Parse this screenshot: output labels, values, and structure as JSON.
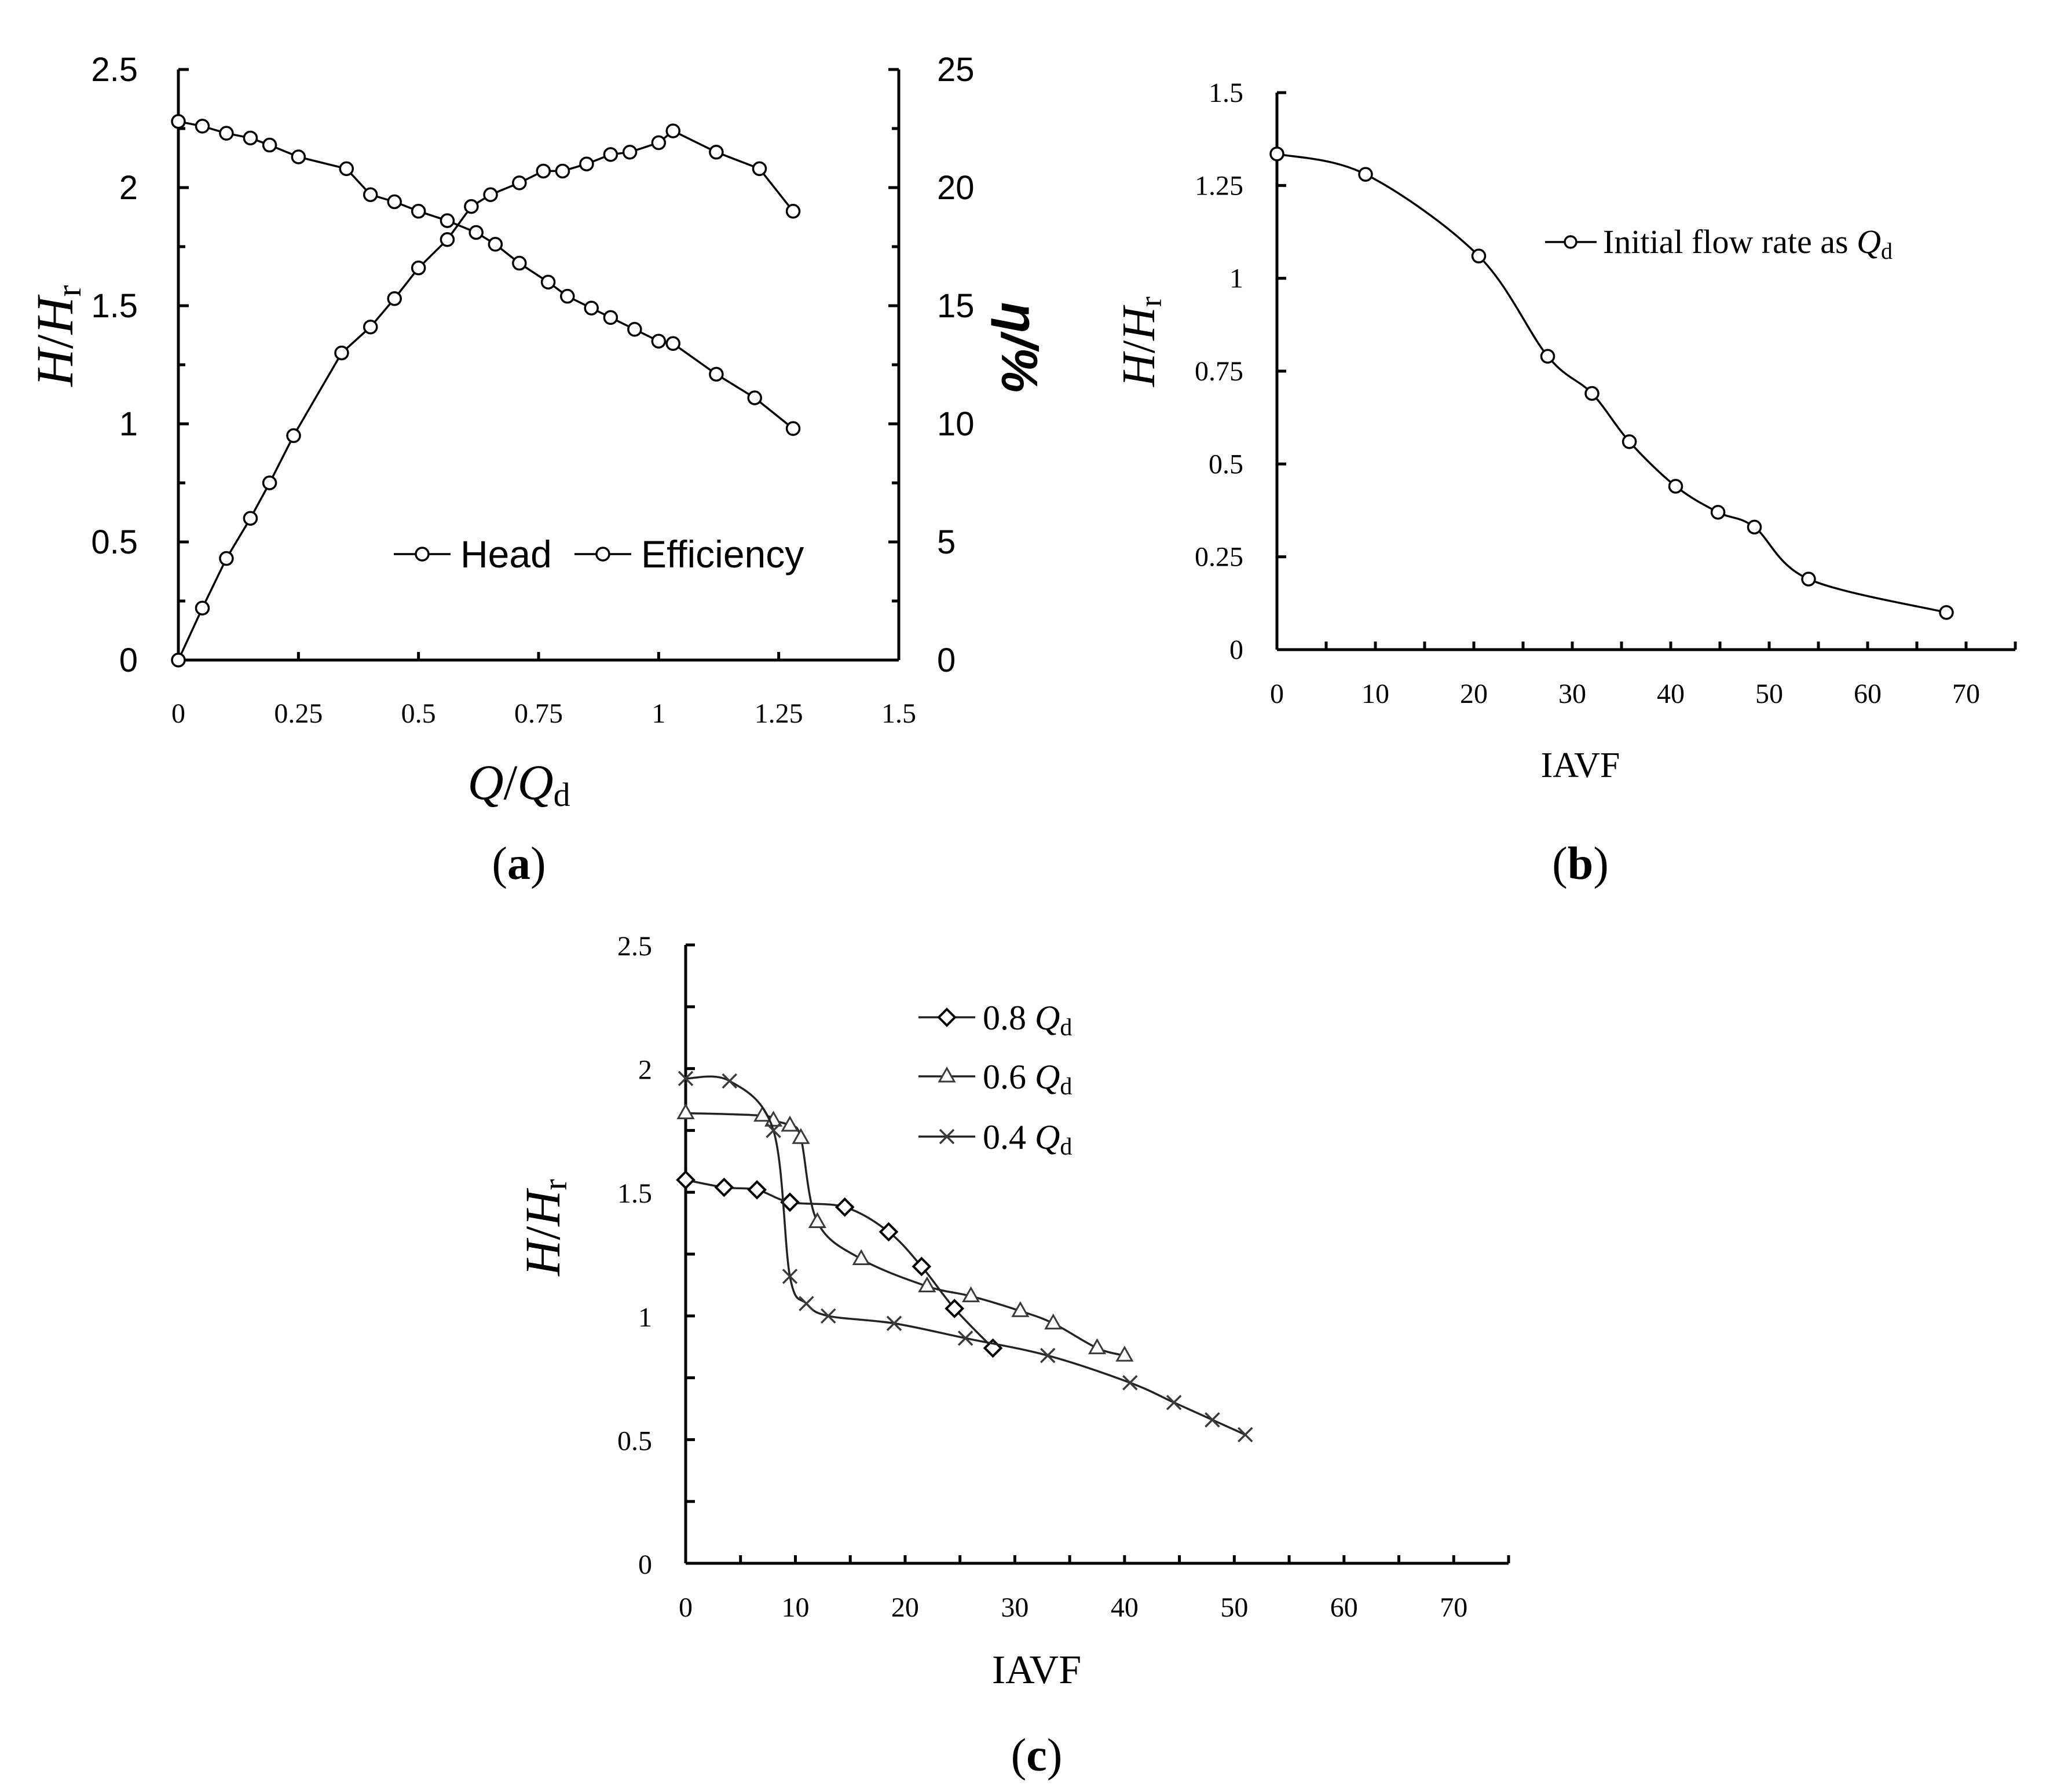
{
  "chart_data": [
    {
      "panel": "a",
      "type": "line",
      "caption_letter": "a",
      "xlabel": {
        "main": "Q",
        "sep": "/",
        "main2": "Q",
        "sub": "d"
      },
      "ylabel": {
        "main": "H",
        "sep": "/",
        "main2": "H",
        "sub": "r"
      },
      "y2label": "η/%",
      "xlim": [
        0,
        1.5
      ],
      "ylim": [
        0,
        2.5
      ],
      "y2lim": [
        0,
        25
      ],
      "xticks": [
        "0",
        "0.25",
        "0.5",
        "0.75",
        "1",
        "1.25",
        "1.5"
      ],
      "yticks": [
        "0",
        "0.5",
        "1",
        "1.5",
        "2",
        "2.5"
      ],
      "y2ticks": [
        "0",
        "5",
        "10",
        "15",
        "20",
        "25"
      ],
      "legend": [
        "Head",
        "Efficiency"
      ],
      "series": [
        {
          "name": "Head",
          "axis": "left",
          "x": [
            0,
            0.05,
            0.1,
            0.15,
            0.19,
            0.25,
            0.35,
            0.4,
            0.45,
            0.5,
            0.56,
            0.62,
            0.66,
            0.71,
            0.77,
            0.81,
            0.86,
            0.9,
            0.95,
            1.0,
            1.03,
            1.12,
            1.2,
            1.28
          ],
          "values": [
            2.28,
            2.26,
            2.23,
            2.21,
            2.18,
            2.13,
            2.08,
            1.97,
            1.94,
            1.9,
            1.86,
            1.81,
            1.76,
            1.68,
            1.6,
            1.54,
            1.49,
            1.45,
            1.4,
            1.35,
            1.34,
            1.21,
            1.11,
            0.98
          ]
        },
        {
          "name": "Efficiency",
          "axis": "right",
          "x": [
            0,
            0.05,
            0.1,
            0.15,
            0.19,
            0.24,
            0.34,
            0.4,
            0.45,
            0.5,
            0.56,
            0.61,
            0.65,
            0.71,
            0.76,
            0.8,
            0.85,
            0.9,
            0.94,
            1.0,
            1.03,
            1.12,
            1.21,
            1.28
          ],
          "values": [
            0,
            2.2,
            4.3,
            6.0,
            7.5,
            9.5,
            13.0,
            14.1,
            15.3,
            16.6,
            17.8,
            19.2,
            19.7,
            20.2,
            20.7,
            20.7,
            21.0,
            21.4,
            21.5,
            21.9,
            22.4,
            21.5,
            20.8,
            19.0
          ]
        }
      ]
    },
    {
      "panel": "b",
      "type": "line",
      "caption_letter": "b",
      "xlabel": "IAVF",
      "ylabel": {
        "main": "H",
        "sep": "/",
        "main2": "H",
        "sub": "r"
      },
      "xlim": [
        0,
        75
      ],
      "ylim": [
        0,
        1.5
      ],
      "xticks": [
        "0",
        "10",
        "20",
        "30",
        "40",
        "50",
        "60",
        "70"
      ],
      "yticks": [
        "0",
        "0.25",
        "0.5",
        "0.75",
        "1",
        "1.25",
        "1.5"
      ],
      "legend": [
        {
          "text": "Initial flow rate as ",
          "q": "Q",
          "sub": "d"
        }
      ],
      "series": [
        {
          "name": "Initial flow rate as Qd",
          "x": [
            0,
            9,
            20.5,
            27.5,
            32,
            35.8,
            40.5,
            44.8,
            48.5,
            54,
            68
          ],
          "values": [
            1.335,
            1.28,
            1.06,
            0.79,
            0.69,
            0.56,
            0.44,
            0.37,
            0.33,
            0.19,
            0.1
          ]
        }
      ]
    },
    {
      "panel": "c",
      "type": "line",
      "caption_letter": "c",
      "xlabel": "IAVF",
      "ylabel": {
        "main": "H",
        "sep": "/",
        "main2": "H",
        "sub": "r"
      },
      "xlim": [
        0,
        75
      ],
      "ylim": [
        0,
        2.5
      ],
      "xticks": [
        "0",
        "10",
        "20",
        "30",
        "40",
        "50",
        "60",
        "70"
      ],
      "yticks": [
        "0",
        "0.5",
        "1",
        "1.5",
        "2",
        "2.5"
      ],
      "legend": [
        {
          "text": "0.8 ",
          "q": "Q",
          "sub": "d",
          "marker": "diamond"
        },
        {
          "text": "0.6 ",
          "q": "Q",
          "sub": "d",
          "marker": "triangle"
        },
        {
          "text": "0.4 ",
          "q": "Q",
          "sub": "d",
          "marker": "x"
        }
      ],
      "series": [
        {
          "name": "0.8 Qd",
          "marker": "diamond",
          "x": [
            0,
            3.5,
            6.5,
            9.5,
            14.5,
            18.5,
            21.5,
            24.5,
            28
          ],
          "values": [
            1.55,
            1.52,
            1.51,
            1.46,
            1.44,
            1.34,
            1.2,
            1.03,
            0.87
          ]
        },
        {
          "name": "0.6 Qd",
          "marker": "triangle",
          "x": [
            0,
            7,
            8,
            9.5,
            10.5,
            12,
            16,
            22,
            26,
            30.5,
            33.5,
            37.5,
            40
          ],
          "values": [
            1.82,
            1.81,
            1.79,
            1.77,
            1.72,
            1.38,
            1.23,
            1.12,
            1.08,
            1.02,
            0.97,
            0.87,
            0.84
          ]
        },
        {
          "name": "0.4 Qd",
          "marker": "x",
          "x": [
            0,
            4,
            8,
            9.5,
            11,
            13,
            19,
            25.5,
            33,
            40.5,
            44.5,
            48,
            51
          ],
          "values": [
            1.96,
            1.95,
            1.75,
            1.16,
            1.05,
            1.0,
            0.97,
            0.91,
            0.84,
            0.73,
            0.65,
            0.58,
            0.52
          ]
        }
      ]
    }
  ]
}
